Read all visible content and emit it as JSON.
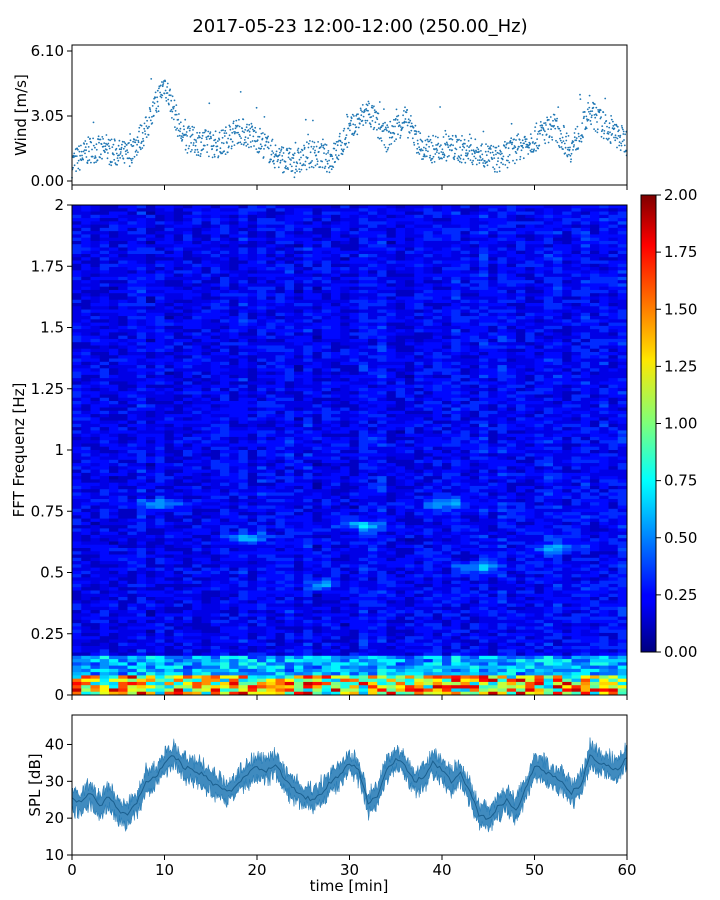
{
  "title": "2017-05-23 12:00-12:00 (250.00_Hz)",
  "chart_data": [
    {
      "type": "scatter",
      "name": "wind",
      "ylabel": "Wind [m/s]",
      "ylim": [
        0,
        6.1
      ],
      "yticks": [
        "0.00",
        "3.05",
        "6.10"
      ],
      "xlim": [
        0,
        60
      ],
      "sampled": true,
      "x": [
        0,
        2,
        4,
        6,
        8,
        10,
        12,
        14,
        16,
        18,
        20,
        22,
        24,
        26,
        28,
        30,
        32,
        34,
        36,
        38,
        40,
        42,
        44,
        46,
        48,
        50,
        52,
        54,
        56,
        58,
        60
      ],
      "y": [
        0.8,
        1.5,
        1.4,
        1.2,
        2.4,
        4.6,
        2.0,
        1.8,
        1.7,
        2.4,
        2.0,
        1.2,
        0.8,
        1.3,
        1.0,
        2.3,
        3.3,
        2.0,
        2.9,
        1.4,
        1.6,
        1.5,
        1.3,
        1.0,
        1.5,
        2.0,
        2.6,
        1.5,
        3.2,
        2.4,
        1.8
      ],
      "color": "#1f77b4"
    },
    {
      "type": "heatmap",
      "name": "spectrogram",
      "ylabel": "FFT Frequenz [Hz]",
      "ylim": [
        0,
        2
      ],
      "yticks": [
        "0",
        "0.25",
        "0.5",
        "0.75",
        "1",
        "1.25",
        "1.5",
        "1.75",
        "2"
      ],
      "xlim": [
        0,
        60
      ],
      "colormap": "jet",
      "colorbar": {
        "min": 0,
        "max": 2,
        "ticks": [
          "0.00",
          "0.25",
          "0.50",
          "0.75",
          "1.00",
          "1.25",
          "1.50",
          "1.75",
          "2.00"
        ]
      },
      "sampled": true,
      "hotspots": [
        {
          "time": 9.5,
          "freq": 0.78,
          "value": 0.7
        },
        {
          "time": 19,
          "freq": 0.64,
          "value": 0.6
        },
        {
          "time": 27,
          "freq": 0.45,
          "value": 0.55
        },
        {
          "time": 31,
          "freq": 0.69,
          "value": 0.65
        },
        {
          "time": 40.5,
          "freq": 0.78,
          "value": 0.6
        },
        {
          "time": 44,
          "freq": 0.52,
          "value": 0.75
        },
        {
          "time": 52,
          "freq": 0.6,
          "value": 0.55
        }
      ]
    },
    {
      "type": "area",
      "name": "spl",
      "ylabel": "SPL [dB]",
      "xlabel": "time [min]",
      "ylim": [
        10,
        48
      ],
      "yticks": [
        "10",
        "20",
        "30",
        "40"
      ],
      "xticks": [
        "0",
        "10",
        "20",
        "30",
        "40",
        "50",
        "60"
      ],
      "xlim": [
        0,
        60
      ],
      "sampled": true,
      "x": [
        0,
        1,
        2,
        3,
        4,
        5,
        6,
        7,
        8,
        9,
        10,
        11,
        12,
        13,
        14,
        15,
        16,
        17,
        18,
        19,
        20,
        21,
        22,
        23,
        24,
        25,
        26,
        27,
        28,
        29,
        30,
        31,
        32,
        33,
        34,
        35,
        36,
        37,
        38,
        39,
        40,
        41,
        42,
        43,
        44,
        45,
        46,
        47,
        48,
        49,
        50,
        51,
        52,
        53,
        54,
        55,
        56,
        57,
        58,
        59,
        60
      ],
      "y": [
        25,
        24,
        27,
        23,
        26,
        22,
        21,
        24,
        30,
        31,
        35,
        37,
        34,
        33,
        32,
        30,
        28,
        27,
        30,
        32,
        34,
        33,
        35,
        30,
        28,
        26,
        25,
        27,
        30,
        32,
        35,
        33,
        24,
        26,
        33,
        36,
        34,
        30,
        31,
        35,
        33,
        30,
        32,
        27,
        21,
        20,
        23,
        25,
        22,
        28,
        34,
        33,
        31,
        30,
        27,
        29,
        37,
        35,
        34,
        33,
        37
      ],
      "color": "#1f77b4"
    }
  ]
}
